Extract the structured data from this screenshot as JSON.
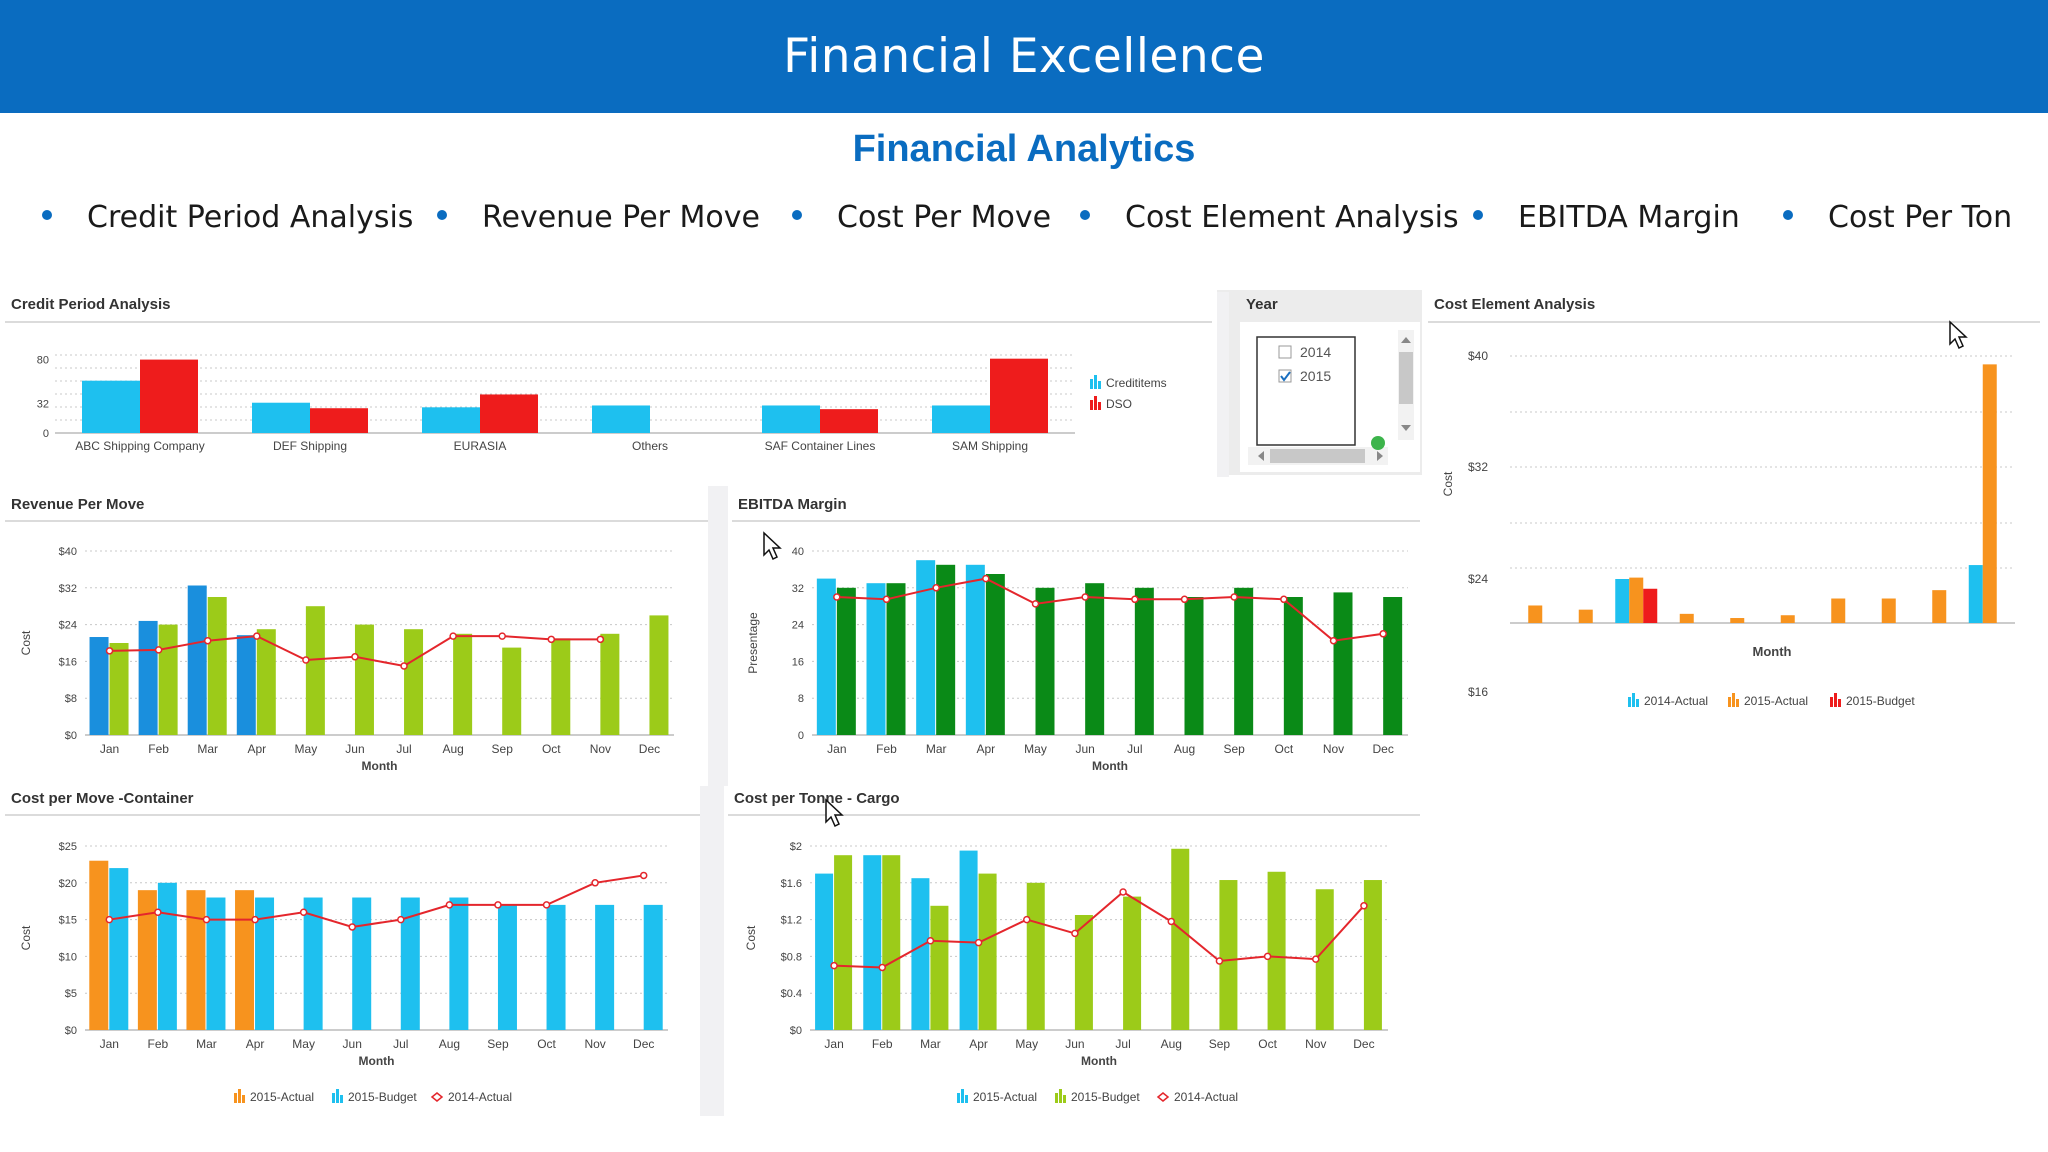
{
  "header": {
    "title": "Financial Excellence"
  },
  "subtitle": "Financial Analytics",
  "nav": [
    {
      "label": "Credit Period Analysis"
    },
    {
      "label": "Revenue Per Move"
    },
    {
      "label": "Cost Per Move"
    },
    {
      "label": "Cost Element Analysis"
    },
    {
      "label": "EBITDA Margin"
    },
    {
      "label": "Cost Per Ton"
    }
  ],
  "year_filter": {
    "title": "Year",
    "options": [
      {
        "label": "2014",
        "checked": false
      },
      {
        "label": "2015",
        "checked": true
      }
    ]
  },
  "colors": {
    "banner": "#0a6cc0",
    "cyan": "#1ec0ef",
    "red": "#ee1c1c",
    "blue": "#1a8fdd",
    "lime": "#9ccb19",
    "green": "#0a8a17",
    "orange": "#f7931e",
    "line": "#e4262c"
  },
  "chart_data": [
    {
      "id": "credit",
      "type": "bar",
      "title": "Credit Period Analysis",
      "categories": [
        "ABC Shipping Company",
        "DEF Shipping",
        "EURASIA",
        "Others",
        "SAF Container Lines",
        "SAM Shipping"
      ],
      "series": [
        {
          "name": "Credititems",
          "color": "#1ec0ef",
          "values": [
            57,
            33,
            28,
            30,
            30,
            30
          ]
        },
        {
          "name": "DSO",
          "color": "#ee1c1c",
          "values": [
            80,
            27,
            42,
            null,
            26,
            81
          ]
        }
      ],
      "yticks": [
        0,
        32,
        80
      ],
      "ylim": [
        0,
        85
      ],
      "legend": "right"
    },
    {
      "id": "revenue",
      "type": "bar",
      "title": "Revenue Per Move",
      "categories": [
        "Jan",
        "Feb",
        "Mar",
        "Apr",
        "May",
        "Jun",
        "Jul",
        "Aug",
        "Sep",
        "Oct",
        "Nov",
        "Dec"
      ],
      "xlabel": "Month",
      "ylabel": "Cost",
      "series": [
        {
          "kind": "bar",
          "color": "#1a8fdd",
          "values": [
            21.3,
            24.8,
            32.5,
            21.7,
            null,
            null,
            null,
            null,
            null,
            null,
            null,
            null
          ]
        },
        {
          "kind": "bar",
          "color": "#9ccb19",
          "values": [
            20,
            24,
            30,
            23,
            28,
            24,
            23,
            22,
            19,
            21,
            22,
            26
          ]
        },
        {
          "kind": "line",
          "color": "#e4262c",
          "values": [
            18.3,
            18.5,
            20.5,
            21.5,
            16.3,
            17,
            15,
            21.5,
            21.5,
            20.8,
            20.8,
            null
          ]
        }
      ],
      "yticks": [
        "$0",
        "$8",
        "$16",
        "$24",
        "$32",
        "$40"
      ],
      "ylim": [
        0,
        40
      ]
    },
    {
      "id": "ebitda",
      "type": "bar",
      "title": "EBITDA Margin",
      "categories": [
        "Jan",
        "Feb",
        "Mar",
        "Apr",
        "May",
        "Jun",
        "Jul",
        "Aug",
        "Sep",
        "Oct",
        "Nov",
        "Dec"
      ],
      "xlabel": "Month",
      "ylabel": "Presentage",
      "series": [
        {
          "kind": "bar",
          "color": "#1ec0ef",
          "values": [
            34,
            33,
            38,
            37,
            null,
            null,
            null,
            null,
            null,
            null,
            null,
            null
          ]
        },
        {
          "kind": "bar",
          "color": "#0a8a17",
          "values": [
            32,
            33,
            37,
            35,
            32,
            33,
            32,
            30,
            32,
            30,
            31,
            30
          ]
        },
        {
          "kind": "line",
          "color": "#e4262c",
          "values": [
            30,
            29.5,
            32,
            34,
            28.5,
            30,
            29.5,
            29.5,
            30,
            29.5,
            20.5,
            22
          ]
        }
      ],
      "yticks": [
        "0",
        "8",
        "16",
        "24",
        "32",
        "40"
      ],
      "ylim": [
        0,
        40
      ]
    },
    {
      "id": "costElement",
      "type": "bar",
      "title": "Cost Element Analysis",
      "categories": [
        "",
        "",
        "",
        "",
        "",
        "",
        "",
        "",
        "",
        ""
      ],
      "xlabel": "Month",
      "ylabel": "Cost",
      "series": [
        {
          "name": "2014-Actual",
          "color": "#1ec0ef",
          "values": [
            20.8,
            20.8,
            24,
            20.6,
            20.6,
            20.8,
            20.8,
            null,
            null,
            25
          ]
        },
        {
          "name": "2015-Actual",
          "color": "#f7931e",
          "values": [
            22.1,
            21.8,
            24.1,
            21.5,
            21.2,
            21.4,
            22.6,
            22.6,
            23.2,
            39.4
          ]
        },
        {
          "name": "2015-Budget",
          "color": "#ee1c1c",
          "values": [
            20.8,
            20.8,
            23.3,
            20.6,
            20.5,
            20.3,
            null,
            null,
            null,
            null
          ]
        }
      ],
      "yticks": [
        "$16",
        "$24",
        "$32",
        "$40"
      ],
      "ylim": [
        20,
        40
      ],
      "legend": "bottom"
    },
    {
      "id": "costMove",
      "type": "bar",
      "title": "Cost per Move -Container",
      "categories": [
        "Jan",
        "Feb",
        "Mar",
        "Apr",
        "May",
        "Jun",
        "Jul",
        "Aug",
        "Sep",
        "Oct",
        "Nov",
        "Dec"
      ],
      "xlabel": "Month",
      "ylabel": "Cost",
      "series": [
        {
          "name": "2015-Actual",
          "kind": "bar",
          "color": "#f7931e",
          "values": [
            23,
            19,
            19,
            19,
            null,
            null,
            null,
            null,
            null,
            null,
            null,
            null
          ]
        },
        {
          "name": "2015-Budget",
          "kind": "bar",
          "color": "#1ec0ef",
          "values": [
            22,
            20,
            18,
            18,
            18,
            18,
            18,
            18,
            17,
            17,
            17,
            17
          ]
        },
        {
          "name": "2014-Actual",
          "kind": "line",
          "color": "#e4262c",
          "values": [
            15,
            16,
            15,
            15,
            16,
            14,
            15,
            17,
            17,
            17,
            20,
            21
          ]
        }
      ],
      "yticks": [
        "$0",
        "$5",
        "$10",
        "$15",
        "$20",
        "$25"
      ],
      "ylim": [
        0,
        25
      ],
      "legend": "bottom"
    },
    {
      "id": "costTon",
      "type": "bar",
      "title": "Cost per Tonne - Cargo",
      "categories": [
        "Jan",
        "Feb",
        "Mar",
        "Apr",
        "May",
        "Jun",
        "Jul",
        "Aug",
        "Sep",
        "Oct",
        "Nov",
        "Dec"
      ],
      "xlabel": "Month",
      "ylabel": "Cost",
      "series": [
        {
          "name": "2015-Actual",
          "kind": "bar",
          "color": "#1ec0ef",
          "values": [
            1.7,
            1.9,
            1.65,
            1.95,
            null,
            null,
            null,
            null,
            null,
            null,
            null,
            null
          ]
        },
        {
          "name": "2015-Budget",
          "kind": "bar",
          "color": "#9ccb19",
          "values": [
            1.9,
            1.9,
            1.35,
            1.7,
            1.6,
            1.25,
            1.45,
            1.97,
            1.63,
            1.72,
            1.53,
            1.63
          ]
        },
        {
          "name": "2014-Actual",
          "kind": "line",
          "color": "#e4262c",
          "values": [
            0.7,
            0.68,
            0.97,
            0.95,
            1.2,
            1.05,
            1.5,
            1.18,
            0.75,
            0.8,
            0.77,
            1.35
          ]
        }
      ],
      "yticks": [
        "$0",
        "$0.4",
        "$0.8",
        "$1.2",
        "$1.6",
        "$2"
      ],
      "ylim": [
        0,
        2
      ],
      "legend": "bottom"
    }
  ]
}
